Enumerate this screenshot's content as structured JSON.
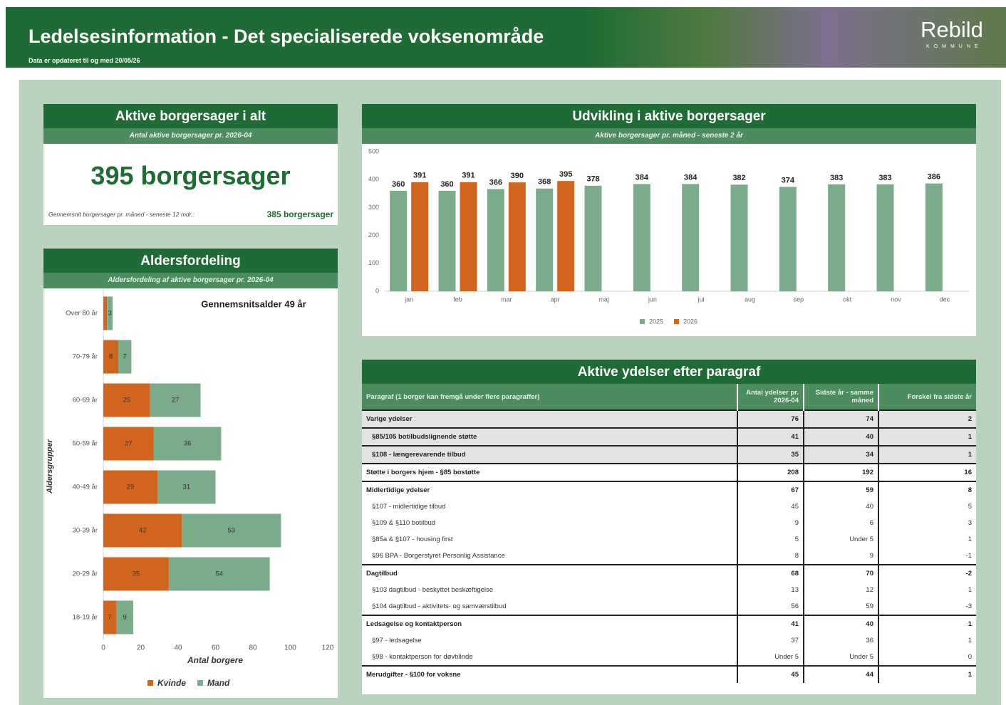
{
  "header": {
    "title": "Ledelsesinformation - Det specialiserede voksenområde",
    "subtitle": "Data er opdateret til og med 20/05/26",
    "logo": "Rebild",
    "logo_sub": "KOMMUNE"
  },
  "kpi": {
    "title": "Aktive borgersager i alt",
    "subtitle": "Antal aktive borgersager pr. 2026-04",
    "value": "395 borgersager",
    "note": "Gennemsnit borgersager pr. måned - seneste 12 mdr.:",
    "note_value": "385 borgersager"
  },
  "chart_data": [
    {
      "type": "bar",
      "orientation": "horizontal",
      "stacked": true,
      "title": "Aldersfordeling",
      "subtitle": "Aldersfordeling af aktive borgersager pr. 2026-04",
      "annotation": "Gennemsnitsalder 49 år",
      "ylabel": "Aldersgrupper",
      "xlabel": "Antal borgere",
      "categories": [
        "Over 80 år",
        "70-79 år",
        "60-69 år",
        "50-59 år",
        "40-49 år",
        "30-39 år",
        "20-29 år",
        "18-19 år"
      ],
      "series": [
        {
          "name": "Kvinde",
          "color": "#d2651d",
          "values": [
            2,
            8,
            25,
            27,
            29,
            42,
            35,
            7
          ]
        },
        {
          "name": "Mand",
          "color": "#7aab8b",
          "values": [
            3,
            7,
            27,
            36,
            31,
            53,
            54,
            9
          ]
        }
      ],
      "xlim": [
        0,
        120
      ],
      "xticks": [
        0,
        20,
        40,
        60,
        80,
        100,
        120
      ]
    },
    {
      "type": "bar",
      "title": "Udvikling i aktive borgersager",
      "subtitle": "Aktive borgersager pr. måned - seneste 2 år",
      "categories": [
        "jan",
        "feb",
        "mar",
        "apr",
        "maj",
        "jun",
        "jul",
        "aug",
        "sep",
        "okt",
        "nov",
        "dec"
      ],
      "series": [
        {
          "name": "2025",
          "color": "#7aab8b",
          "values": [
            360,
            360,
            366,
            368,
            378,
            384,
            384,
            382,
            374,
            383,
            383,
            386
          ]
        },
        {
          "name": "2026",
          "color": "#d2651d",
          "values": [
            391,
            391,
            390,
            395,
            null,
            null,
            null,
            null,
            null,
            null,
            null,
            null
          ]
        }
      ],
      "ylim": [
        0,
        500
      ],
      "yticks": [
        0,
        100,
        200,
        300,
        400,
        500
      ]
    }
  ],
  "table": {
    "title": "Aktive ydelser efter paragraf",
    "columns": [
      "Paragraf (1 borger kan fremgå under flere paragraffer)",
      "Antal ydelser pr. 2026-04",
      "Sidste år - samme måned",
      "Forskel fra sidste år"
    ],
    "rows": [
      {
        "cells": [
          "Varige ydelser",
          76,
          74,
          2
        ],
        "group": true,
        "shaded": true
      },
      {
        "cells": [
          "§85/105 botilbudslignende støtte",
          41,
          40,
          1
        ],
        "group": true,
        "shaded": true,
        "sub": true
      },
      {
        "cells": [
          "§108 - længerevarende tilbud",
          35,
          34,
          1
        ],
        "group": true,
        "shaded": true,
        "sub": true
      },
      {
        "cells": [
          "Støtte i borgers hjem - §85 bostøtte",
          208,
          192,
          16
        ],
        "group": true
      },
      {
        "cells": [
          "Midlertidige ydelser",
          67,
          59,
          8
        ],
        "group": true
      },
      {
        "cells": [
          "§107 - midlertidige tilbud",
          45,
          40,
          5
        ],
        "sub": true
      },
      {
        "cells": [
          "§109 & §110 botilbud",
          9,
          6,
          3
        ],
        "sub": true
      },
      {
        "cells": [
          "§85a & §107 - housing first",
          5,
          "Under 5",
          1
        ],
        "sub": true
      },
      {
        "cells": [
          "§96 BPA - Borgerstyret Personlig Assistance",
          8,
          9,
          -1
        ],
        "sub": true
      },
      {
        "cells": [
          "Dagtilbud",
          68,
          70,
          -2
        ],
        "group": true
      },
      {
        "cells": [
          "§103 dagtilbud - beskyttet beskæftigelse",
          13,
          12,
          1
        ],
        "sub": true
      },
      {
        "cells": [
          "§104 dagtilbud - aktivitets- og samværstilbud",
          56,
          59,
          -3
        ],
        "sub": true
      },
      {
        "cells": [
          "Ledsagelse og kontaktperson",
          41,
          40,
          1
        ],
        "group": true
      },
      {
        "cells": [
          "§97 - ledsagelse",
          37,
          36,
          1
        ],
        "sub": true
      },
      {
        "cells": [
          "§98 - kontaktperson for døvblinde",
          "Under 5",
          "Under 5",
          0
        ],
        "sub": true
      },
      {
        "cells": [
          "Merudgifter - §100 for voksne",
          45,
          44,
          1
        ],
        "group": true
      }
    ]
  }
}
